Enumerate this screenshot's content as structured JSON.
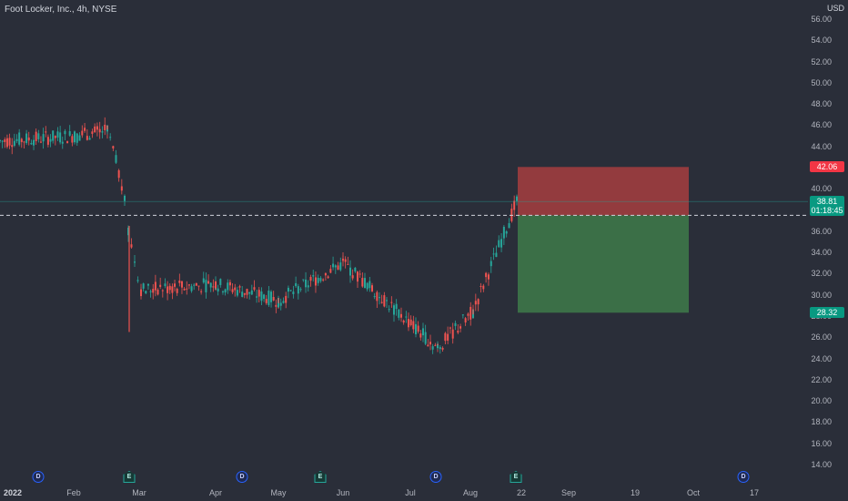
{
  "header": {
    "title": "Foot Locker, Inc., 4h, NYSE",
    "currency": "USD"
  },
  "price_axis": {
    "labels": [
      "56.00",
      "54.00",
      "52.00",
      "50.00",
      "48.00",
      "46.00",
      "44.00",
      "42.00",
      "40.00",
      "38.00",
      "36.00",
      "34.00",
      "32.00",
      "30.00",
      "28.00",
      "26.00",
      "24.00",
      "22.00",
      "20.00",
      "18.00",
      "16.00",
      "14.00"
    ]
  },
  "time_axis": {
    "labels": [
      {
        "text": "2022",
        "bold": true
      },
      {
        "text": "Feb",
        "bold": false
      },
      {
        "text": "Mar",
        "bold": false
      },
      {
        "text": "Apr",
        "bold": false
      },
      {
        "text": "May",
        "bold": false
      },
      {
        "text": "Jun",
        "bold": false
      },
      {
        "text": "Jul",
        "bold": false
      },
      {
        "text": "Aug",
        "bold": false
      },
      {
        "text": "22",
        "bold": false
      },
      {
        "text": "Sep",
        "bold": false
      },
      {
        "text": "19",
        "bold": false
      },
      {
        "text": "Oct",
        "bold": false
      },
      {
        "text": "17",
        "bold": false
      }
    ]
  },
  "price_tags": {
    "stop": {
      "value": "42.06",
      "color": "#f23645"
    },
    "current": {
      "value": "38.81",
      "countdown": "01:18:45",
      "color": "#089981"
    },
    "target": {
      "value": "28.32",
      "color": "#089981"
    }
  },
  "position_tool": {
    "entry": 37.5,
    "stop": 42.06,
    "target": 28.32,
    "loss_color": "#a63d40",
    "profit_color": "#3e7a4a"
  },
  "events": [
    {
      "type": "dividend",
      "glyph": "D"
    },
    {
      "type": "earnings",
      "glyph": "E"
    },
    {
      "type": "dividend",
      "glyph": "D"
    },
    {
      "type": "earnings",
      "glyph": "E"
    },
    {
      "type": "dividend",
      "glyph": "D"
    },
    {
      "type": "earnings",
      "glyph": "E"
    },
    {
      "type": "dividend",
      "glyph": "D"
    }
  ],
  "chart_data": {
    "type": "candlestick",
    "ylim": [
      14,
      56
    ],
    "up_color": "#26a69a",
    "down_color": "#ef5350",
    "segments": [
      {
        "from": "2022",
        "to": "Feb",
        "start": 44.5,
        "end": 45.0
      },
      {
        "from": "Feb",
        "to": "Feb end",
        "start": 45.0,
        "end": 45.5
      },
      {
        "from": "Feb end",
        "to": "earnings",
        "start": 45.5,
        "end": 39.5
      },
      {
        "from": "earnings gap",
        "to": "Mar",
        "start": 36.0,
        "end": 30.5
      },
      {
        "from": "Mar",
        "to": "Apr",
        "start": 30.5,
        "end": 31.0
      },
      {
        "from": "Apr",
        "to": "May",
        "start": 31.0,
        "end": 29.5
      },
      {
        "from": "May",
        "to": "Jun",
        "start": 29.5,
        "end": 33.0
      },
      {
        "from": "Jun",
        "to": "Jul",
        "start": 33.0,
        "end": 25.0
      },
      {
        "from": "Jul",
        "to": "Aug",
        "start": 25.0,
        "end": 28.5
      },
      {
        "from": "Aug",
        "to": "22",
        "start": 28.5,
        "end": 38.8
      }
    ]
  }
}
